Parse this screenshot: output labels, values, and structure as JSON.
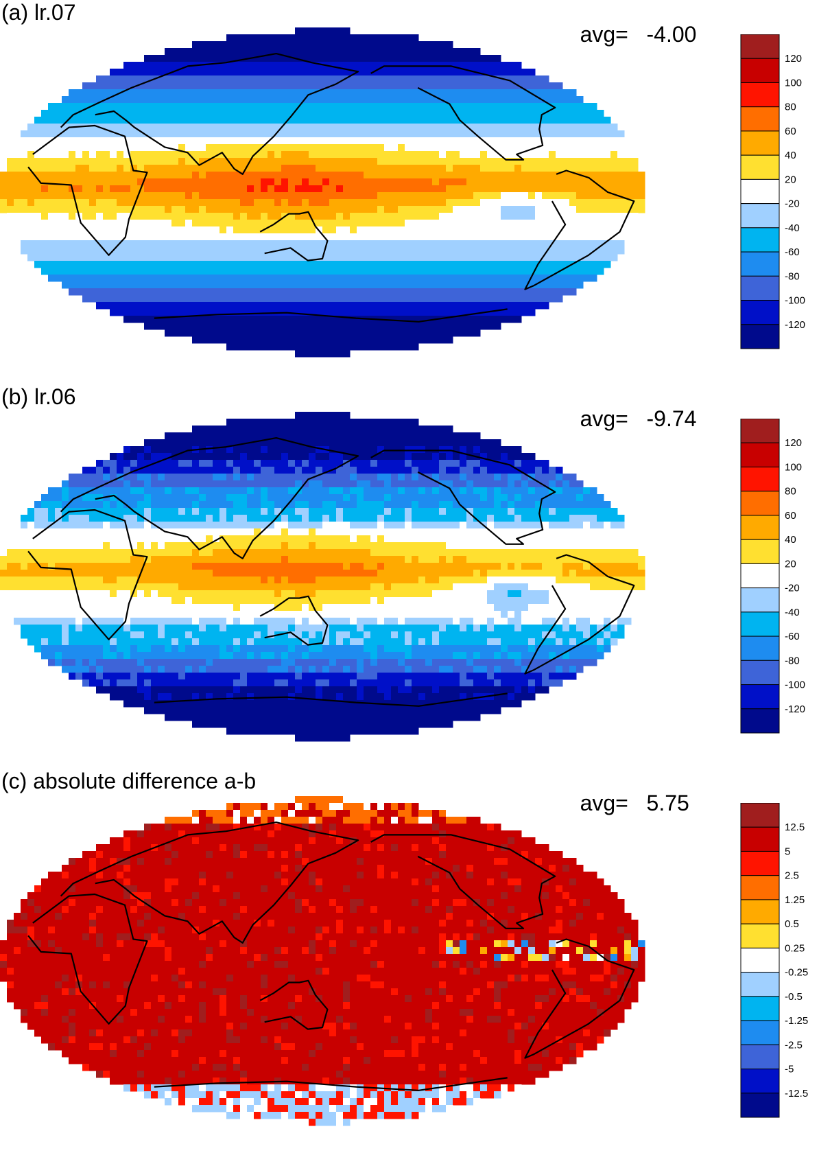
{
  "panels": [
    {
      "id": "a",
      "label": "(a) lr.07",
      "avg_prefix": "avg=",
      "avg_value": "-4.00",
      "colorbar": {
        "colors": [
          "#000a8c",
          "#0010c8",
          "#3e64d8",
          "#1e8cf0",
          "#00b4f0",
          "#a0d0ff",
          "#ffffff",
          "#ffe030",
          "#ffaa00",
          "#ff6e00",
          "#ff1400",
          "#c80000",
          "#a01e1e"
        ],
        "labels": [
          "-120",
          "-100",
          "-80",
          "-60",
          "-40",
          "-20",
          "20",
          "40",
          "60",
          "80",
          "100",
          "120"
        ]
      },
      "continents": "map a"
    },
    {
      "id": "b",
      "label": "(b) lr.06",
      "avg_prefix": "avg=",
      "avg_value": "-9.74",
      "colorbar": {
        "colors": [
          "#000a8c",
          "#0010c8",
          "#3e64d8",
          "#1e8cf0",
          "#00b4f0",
          "#a0d0ff",
          "#ffffff",
          "#ffe030",
          "#ffaa00",
          "#ff6e00",
          "#ff1400",
          "#c80000",
          "#a01e1e"
        ],
        "labels": [
          "-120",
          "-100",
          "-80",
          "-60",
          "-40",
          "-20",
          "20",
          "40",
          "60",
          "80",
          "100",
          "120"
        ]
      },
      "continents": "map b"
    },
    {
      "id": "c",
      "label": "(c) absolute difference a-b",
      "avg_prefix": "avg=",
      "avg_value": "5.75",
      "colorbar": {
        "colors": [
          "#000a8c",
          "#0010c8",
          "#3e64d8",
          "#1e8cf0",
          "#00b4f0",
          "#a0d0ff",
          "#ffffff",
          "#ffe030",
          "#ffaa00",
          "#ff6e00",
          "#ff1400",
          "#c80000",
          "#a01e1e"
        ],
        "labels": [
          "-12.5",
          "-5",
          "-2.5",
          "-1.25",
          "-0.5",
          "-0.25",
          "0.25",
          "0.5",
          "1.25",
          "2.5",
          "5",
          "12.5"
        ]
      },
      "continents": "map c"
    }
  ]
}
